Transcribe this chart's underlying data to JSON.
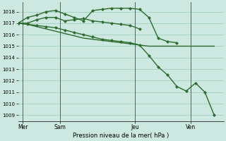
{
  "bg_color": "#cce8e0",
  "grid_color": "#99ccbb",
  "line_color": "#2d6b2d",
  "vline_color": "#556655",
  "title": "Pression niveau de la mer( hPa )",
  "ylim": [
    1008.5,
    1018.8
  ],
  "yticks": [
    1009,
    1010,
    1011,
    1012,
    1013,
    1014,
    1015,
    1016,
    1017,
    1018
  ],
  "xlim": [
    0,
    22
  ],
  "day_labels": [
    "Mer",
    "Sam",
    "Jeu",
    "Ven"
  ],
  "day_positions": [
    0.5,
    4.5,
    12.5,
    18.5
  ],
  "vline_positions": [
    0.5,
    4.5,
    12.5,
    18.5
  ],
  "series": [
    {
      "x": [
        0,
        1,
        2,
        3,
        4,
        5,
        6,
        7,
        8,
        9,
        10,
        11,
        12,
        13,
        14,
        15,
        16,
        17,
        18,
        19,
        20,
        21
      ],
      "y": [
        1017.0,
        1016.9,
        1016.8,
        1016.7,
        1016.6,
        1016.4,
        1016.2,
        1016.0,
        1015.8,
        1015.6,
        1015.5,
        1015.4,
        1015.3,
        1015.1,
        1014.2,
        1013.2,
        1012.5,
        1011.5,
        1011.1,
        1011.8,
        1011.0,
        1009.0
      ],
      "has_marker": true,
      "marker": "D",
      "markersize": 2.0,
      "lw": 1.0
    },
    {
      "x": [
        0,
        1,
        2,
        3,
        4,
        5,
        6,
        7,
        8,
        9,
        10,
        11,
        12,
        13,
        14,
        15,
        16,
        17,
        18,
        19,
        20,
        21
      ],
      "y": [
        1017.0,
        1016.9,
        1016.7,
        1016.5,
        1016.3,
        1016.1,
        1015.9,
        1015.7,
        1015.6,
        1015.5,
        1015.4,
        1015.3,
        1015.2,
        1015.1,
        1015.0,
        1015.0,
        1015.0,
        1015.0,
        1015.0,
        1015.0,
        1015.0,
        1015.0
      ],
      "has_marker": false,
      "marker": null,
      "markersize": 0,
      "lw": 1.0
    },
    {
      "x": [
        0,
        1,
        2,
        3,
        4,
        5,
        6,
        7,
        8,
        9,
        10,
        11,
        12,
        13,
        14,
        15,
        16,
        17
      ],
      "y": [
        1017.0,
        1017.5,
        1017.7,
        1018.0,
        1018.1,
        1017.8,
        1017.5,
        1017.2,
        1018.1,
        1018.2,
        1018.3,
        1018.3,
        1018.3,
        1018.2,
        1017.5,
        1015.7,
        1015.4,
        1015.3
      ],
      "has_marker": true,
      "marker": "D",
      "markersize": 2.0,
      "lw": 1.0
    },
    {
      "x": [
        0,
        1,
        2,
        3,
        4,
        5,
        6,
        7,
        8,
        9,
        10,
        11,
        12,
        13
      ],
      "y": [
        1017.0,
        1017.0,
        1017.3,
        1017.5,
        1017.5,
        1017.2,
        1017.3,
        1017.4,
        1017.2,
        1017.1,
        1017.0,
        1016.9,
        1016.8,
        1016.5
      ],
      "has_marker": true,
      "marker": "D",
      "markersize": 2.0,
      "lw": 1.0
    }
  ]
}
